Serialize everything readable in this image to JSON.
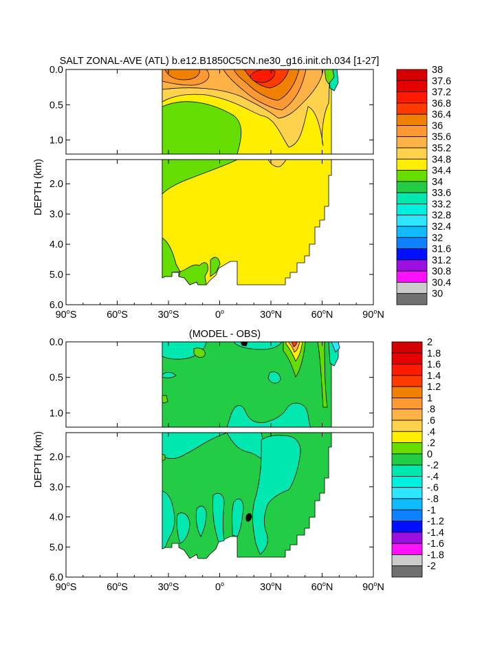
{
  "chart_data": [
    {
      "type": "heatmap",
      "title": "SALT ZONAL-AVE (ATL) b.e12.B1850C5CN.ne30_g16.init.ch.034 [1-27]",
      "ylabel": "DEPTH (km)",
      "xlim": [
        -90,
        90
      ],
      "ylim_upper": [
        0,
        1.2
      ],
      "ylim_lower": [
        1.2,
        6.0
      ],
      "x_ticks": [
        {
          "v": -90,
          "label": "90°S",
          "deg": "90",
          "hemi": "S"
        },
        {
          "v": -60,
          "label": "60°S",
          "deg": "60",
          "hemi": "S"
        },
        {
          "v": -30,
          "label": "30°S",
          "deg": "30",
          "hemi": "S"
        },
        {
          "v": 0,
          "label": "0°",
          "deg": "0",
          "hemi": ""
        },
        {
          "v": 30,
          "label": "30°N",
          "deg": "30",
          "hemi": "N"
        },
        {
          "v": 60,
          "label": "60°N",
          "deg": "60",
          "hemi": "N"
        },
        {
          "v": 90,
          "label": "90°N",
          "deg": "90",
          "hemi": "N"
        }
      ],
      "y_ticks_upper": [
        {
          "v": 0,
          "label": "0.0"
        },
        {
          "v": 0.5,
          "label": "0.5"
        },
        {
          "v": 1.0,
          "label": "1.0"
        }
      ],
      "y_ticks_lower": [
        {
          "v": 2,
          "label": "2.0"
        },
        {
          "v": 3,
          "label": "3.0"
        },
        {
          "v": 4,
          "label": "4.0"
        },
        {
          "v": 5,
          "label": "5.0"
        },
        {
          "v": 6,
          "label": "6.0"
        }
      ],
      "colorbar_labels": [
        "38",
        "37.6",
        "37.2",
        "36.8",
        "36.4",
        "36",
        "35.6",
        "35.2",
        "34.8",
        "34.4",
        "34",
        "33.6",
        "33.2",
        "32.8",
        "32.4",
        "32",
        "31.6",
        "31.2",
        "30.8",
        "30.4",
        "30"
      ],
      "colorbar_colors": [
        "#d40000",
        "#e70000",
        "#ff1a00",
        "#ff3b00",
        "#f08000",
        "#ff9933",
        "#ffb347",
        "#ffd24d",
        "#ffee00",
        "#66dd00",
        "#22cc44",
        "#00e8b0",
        "#00f0e0",
        "#2ee6ff",
        "#10bbff",
        "#0f80ff",
        "#0010ff",
        "#9b10e0",
        "#ff10ff",
        "#cccccc",
        "#707070"
      ]
    },
    {
      "type": "heatmap",
      "title": "(MODEL - OBS)",
      "ylabel": "DEPTH (km)",
      "xlim": [
        -90,
        90
      ],
      "ylim_upper": [
        0,
        1.2
      ],
      "ylim_lower": [
        1.2,
        6.0
      ],
      "x_ticks": [
        {
          "v": -90,
          "label": "90°S",
          "deg": "90",
          "hemi": "S"
        },
        {
          "v": -60,
          "label": "60°S",
          "deg": "60",
          "hemi": "S"
        },
        {
          "v": -30,
          "label": "30°S",
          "deg": "30",
          "hemi": "S"
        },
        {
          "v": 0,
          "label": "0°",
          "deg": "0",
          "hemi": ""
        },
        {
          "v": 30,
          "label": "30°N",
          "deg": "30",
          "hemi": "N"
        },
        {
          "v": 60,
          "label": "60°N",
          "deg": "60",
          "hemi": "N"
        },
        {
          "v": 90,
          "label": "90°N",
          "deg": "90",
          "hemi": "N"
        }
      ],
      "y_ticks_upper": [
        {
          "v": 0,
          "label": "0.0"
        },
        {
          "v": 0.5,
          "label": "0.5"
        },
        {
          "v": 1.0,
          "label": "1.0"
        }
      ],
      "y_ticks_lower": [
        {
          "v": 2,
          "label": "2.0"
        },
        {
          "v": 3,
          "label": "3.0"
        },
        {
          "v": 4,
          "label": "4.0"
        },
        {
          "v": 5,
          "label": "5.0"
        },
        {
          "v": 6,
          "label": "6.0"
        }
      ],
      "colorbar_labels": [
        "2",
        "1.8",
        "1.6",
        "1.4",
        "1.2",
        "1",
        ".8",
        ".6",
        ".4",
        ".2",
        "0",
        "-.2",
        "-.4",
        "-.6",
        "-.8",
        "-1",
        "-1.2",
        "-1.4",
        "-1.6",
        "-1.8",
        "-2"
      ],
      "colorbar_colors": [
        "#d40000",
        "#e70000",
        "#ff1a00",
        "#ff3b00",
        "#f08000",
        "#ff9933",
        "#ffb347",
        "#ffd24d",
        "#ffee00",
        "#66dd00",
        "#22cc44",
        "#00e8b0",
        "#00f0e0",
        "#2ee6ff",
        "#10bbff",
        "#0f80ff",
        "#0010ff",
        "#9b10e0",
        "#ff10ff",
        "#cccccc",
        "#707070"
      ]
    }
  ]
}
